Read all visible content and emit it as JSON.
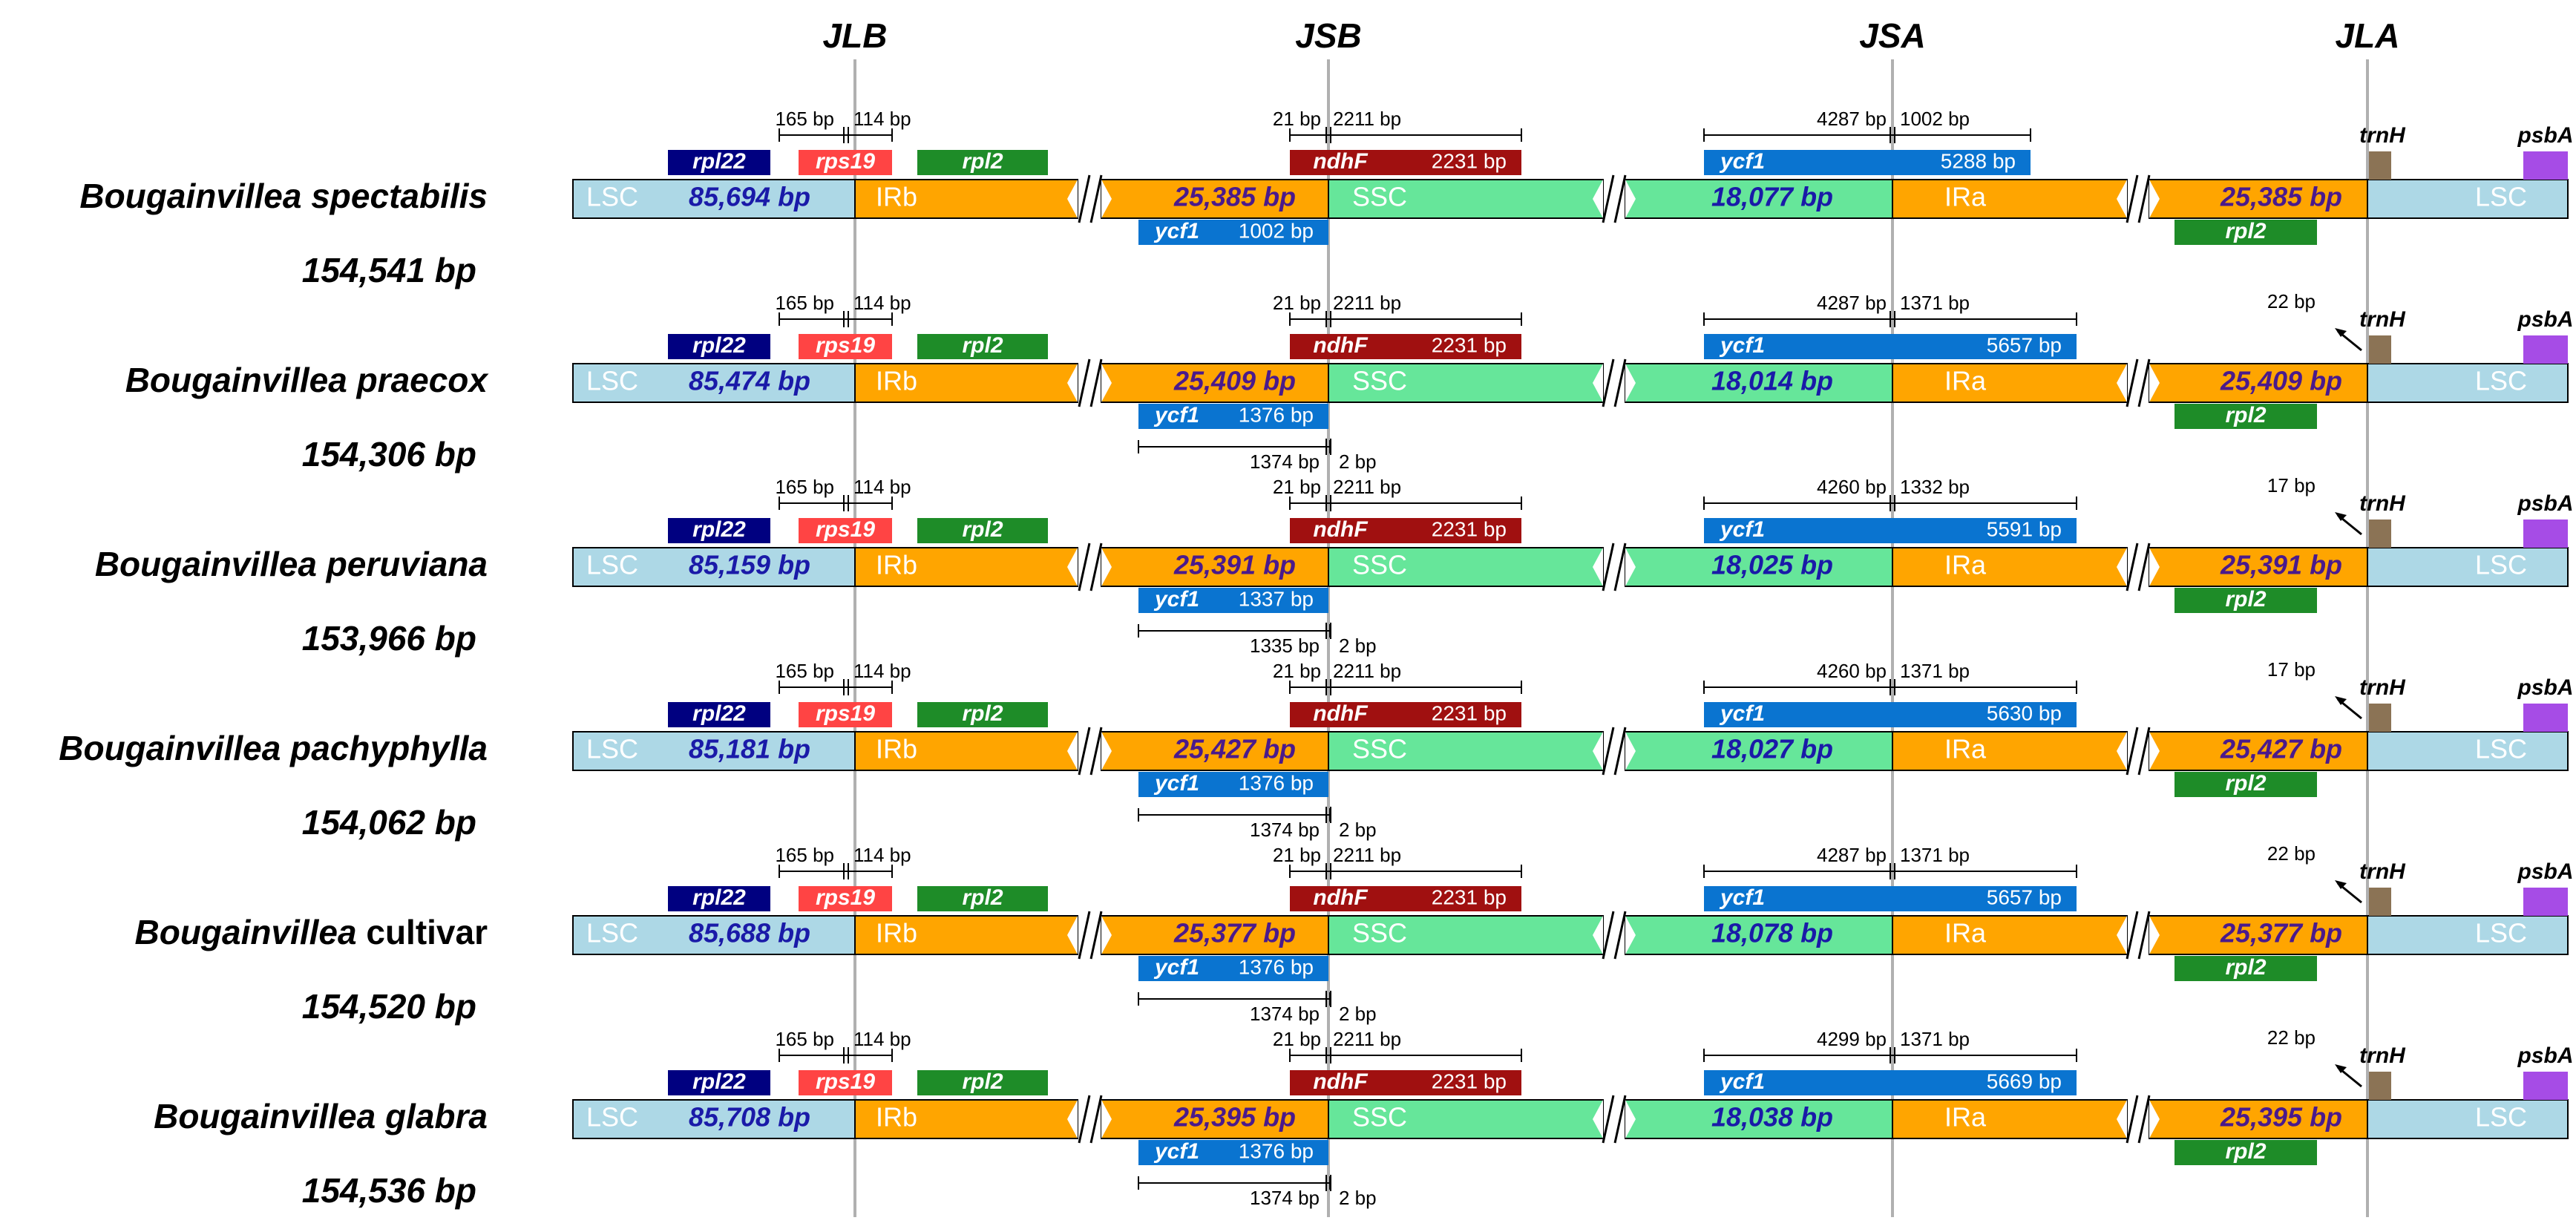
{
  "junctions": [
    "JLB",
    "JSB",
    "JSA",
    "JLA"
  ],
  "species": [
    {
      "genus": "Bougainvillea",
      "epithet": "spectabilis",
      "epithet_italic": true,
      "total": "154,541 bp",
      "lsc": "85,694 bp",
      "irb": "25,385 bp",
      "ssc": "18,077 bp",
      "ira": "25,385 bp",
      "jlb_left": "165 bp",
      "jlb_right": "114 bp",
      "ndhf_left": "21 bp",
      "ndhf_right": "2211 bp",
      "ndhf_len": "2231 bp",
      "ycf1_left": "4287 bp",
      "ycf1_right": "1002 bp",
      "ycf1_len": "5288 bp",
      "ycf1_irb_len": "1002 bp",
      "bottom_left": null,
      "bottom_right": null,
      "trnh_dist": null,
      "psba": "psbA"
    },
    {
      "genus": "Bougainvillea",
      "epithet": "praecox",
      "epithet_italic": true,
      "total": "154,306 bp",
      "lsc": "85,474 bp",
      "irb": "25,409 bp",
      "ssc": "18,014 bp",
      "ira": "25,409 bp",
      "jlb_left": "165 bp",
      "jlb_right": "114 bp",
      "ndhf_left": "21 bp",
      "ndhf_right": "2211 bp",
      "ndhf_len": "2231 bp",
      "ycf1_left": "4287 bp",
      "ycf1_right": "1371 bp",
      "ycf1_len": "5657 bp",
      "ycf1_irb_len": "1376 bp",
      "bottom_left": "1374 bp",
      "bottom_right": "2 bp",
      "trnh_dist": "22 bp",
      "psba": "psbA"
    },
    {
      "genus": "Bougainvillea",
      "epithet": "peruviana",
      "epithet_italic": true,
      "total": "153,966 bp",
      "lsc": "85,159 bp",
      "irb": "25,391 bp",
      "ssc": "18,025 bp",
      "ira": "25,391 bp",
      "jlb_left": "165 bp",
      "jlb_right": "114 bp",
      "ndhf_left": "21 bp",
      "ndhf_right": "2211 bp",
      "ndhf_len": "2231 bp",
      "ycf1_left": "4260 bp",
      "ycf1_right": "1332 bp",
      "ycf1_len": "5591 bp",
      "ycf1_irb_len": "1337 bp",
      "bottom_left": "1335 bp",
      "bottom_right": "2 bp",
      "trnh_dist": "17 bp",
      "psba": "psbA"
    },
    {
      "genus": "Bougainvillea",
      "epithet": "pachyphylla",
      "epithet_italic": true,
      "total": "154,062 bp",
      "lsc": "85,181 bp",
      "irb": "25,427 bp",
      "ssc": "18,027 bp",
      "ira": "25,427 bp",
      "jlb_left": "165 bp",
      "jlb_right": "114 bp",
      "ndhf_left": "21 bp",
      "ndhf_right": "2211 bp",
      "ndhf_len": "2231 bp",
      "ycf1_left": "4260 bp",
      "ycf1_right": "1371 bp",
      "ycf1_len": "5630 bp",
      "ycf1_irb_len": "1376 bp",
      "bottom_left": "1374 bp",
      "bottom_right": "2 bp",
      "trnh_dist": "17 bp",
      "psba": "psbA"
    },
    {
      "genus": "Bougainvillea",
      "epithet": "cultivar",
      "epithet_italic": false,
      "total": "154,520 bp",
      "lsc": "85,688 bp",
      "irb": "25,377 bp",
      "ssc": "18,078 bp",
      "ira": "25,377 bp",
      "jlb_left": "165 bp",
      "jlb_right": "114 bp",
      "ndhf_left": "21 bp",
      "ndhf_right": "2211 bp",
      "ndhf_len": "2231 bp",
      "ycf1_left": "4287 bp",
      "ycf1_right": "1371 bp",
      "ycf1_len": "5657 bp",
      "ycf1_irb_len": "1376 bp",
      "bottom_left": "1374 bp",
      "bottom_right": "2 bp",
      "trnh_dist": "22 bp",
      "psba": "psbA"
    },
    {
      "genus": "Bougainvillea",
      "epithet": "glabra",
      "epithet_italic": true,
      "total": "154,536 bp",
      "lsc": "85,708 bp",
      "irb": "25,395 bp",
      "ssc": "18,038 bp",
      "ira": "25,395 bp",
      "jlb_left": "165 bp",
      "jlb_right": "114 bp",
      "ndhf_left": "21 bp",
      "ndhf_right": "2211 bp",
      "ndhf_len": "2231 bp",
      "ycf1_left": "4299 bp",
      "ycf1_right": "1371 bp",
      "ycf1_len": "5669 bp",
      "ycf1_irb_len": "1376 bp",
      "bottom_left": "1374 bp",
      "bottom_right": "2 bp",
      "trnh_dist": "22 bp",
      "psba": "psbA"
    }
  ],
  "labels": {
    "lsc": "LSC",
    "irb": "IRb",
    "ssc": "SSC",
    "ira": "IRa",
    "rpl22": "rpl22",
    "rps19": "rps19",
    "rpl2": "rpl2",
    "ndhf": "ndhF",
    "ycf1": "ycf1",
    "trnh": "trnH"
  },
  "colors": {
    "lsc": "#add8e6",
    "ir": "#ffa500",
    "ssc": "#66e69a",
    "rpl22": "#000080",
    "rps19": "#ff4444",
    "rpl2": "#1e8c28",
    "ndhf": "#a01010",
    "ycf1": "#0a74d0",
    "trnh": "#8b7355",
    "psba": "#a64ce6",
    "guide": "#b0b0b0",
    "size_blue": "#1a1aa8",
    "size_purple": "#4a1a8c"
  }
}
